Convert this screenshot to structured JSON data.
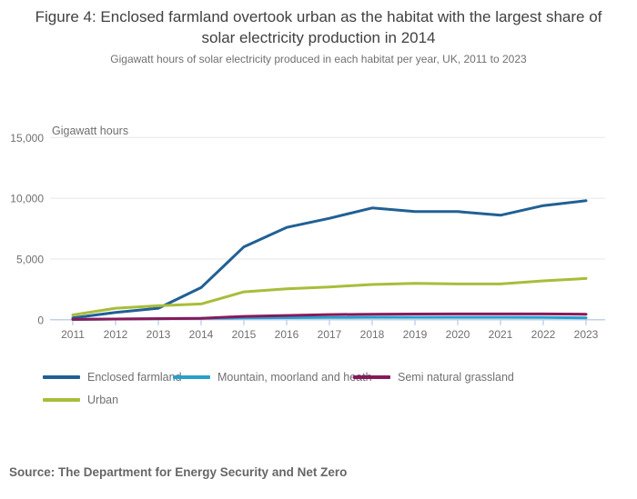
{
  "chart_data": {
    "type": "line",
    "title": "Figure 4: Enclosed farmland overtook urban as the habitat with the largest share of solar electricity production in 2014",
    "subtitle": "Gigawatt hours of solar electricity produced in each habitat per year, UK, 2011 to 2023",
    "unit_label": "Gigawatt hours",
    "x": [
      "2011",
      "2012",
      "2013",
      "2014",
      "2015",
      "2016",
      "2017",
      "2018",
      "2019",
      "2020",
      "2021",
      "2022",
      "2023"
    ],
    "series": [
      {
        "name": "Enclosed farmland",
        "color": "#206095",
        "values": [
          150,
          600,
          950,
          2650,
          6000,
          7600,
          8350,
          9200,
          8900,
          8900,
          8600,
          9400,
          9800
        ]
      },
      {
        "name": "Mountain, moorland and heath",
        "color": "#27a0cc",
        "values": [
          20,
          60,
          90,
          110,
          150,
          170,
          190,
          200,
          200,
          200,
          200,
          190,
          160
        ]
      },
      {
        "name": "Semi natural grassland",
        "color": "#871a5b",
        "values": [
          30,
          60,
          90,
          120,
          280,
          350,
          430,
          460,
          470,
          480,
          480,
          480,
          460
        ]
      },
      {
        "name": "Urban",
        "color": "#a8bd3a",
        "values": [
          400,
          950,
          1150,
          1300,
          2300,
          2550,
          2700,
          2900,
          3000,
          2950,
          2950,
          3200,
          3400
        ]
      }
    ],
    "ylim": [
      0,
      15000
    ],
    "yticks": [
      0,
      5000,
      10000,
      15000
    ],
    "ytick_labels": [
      "0",
      "5,000",
      "10,000",
      "15,000"
    ],
    "grid": true,
    "legend_position": "bottom",
    "colors": {
      "axis": "#c3d2e8",
      "gridline": "#e7e7e9",
      "tick_text": "#707071"
    }
  },
  "footer": {
    "source": "Source: The Department for Energy Security and Net Zero"
  }
}
